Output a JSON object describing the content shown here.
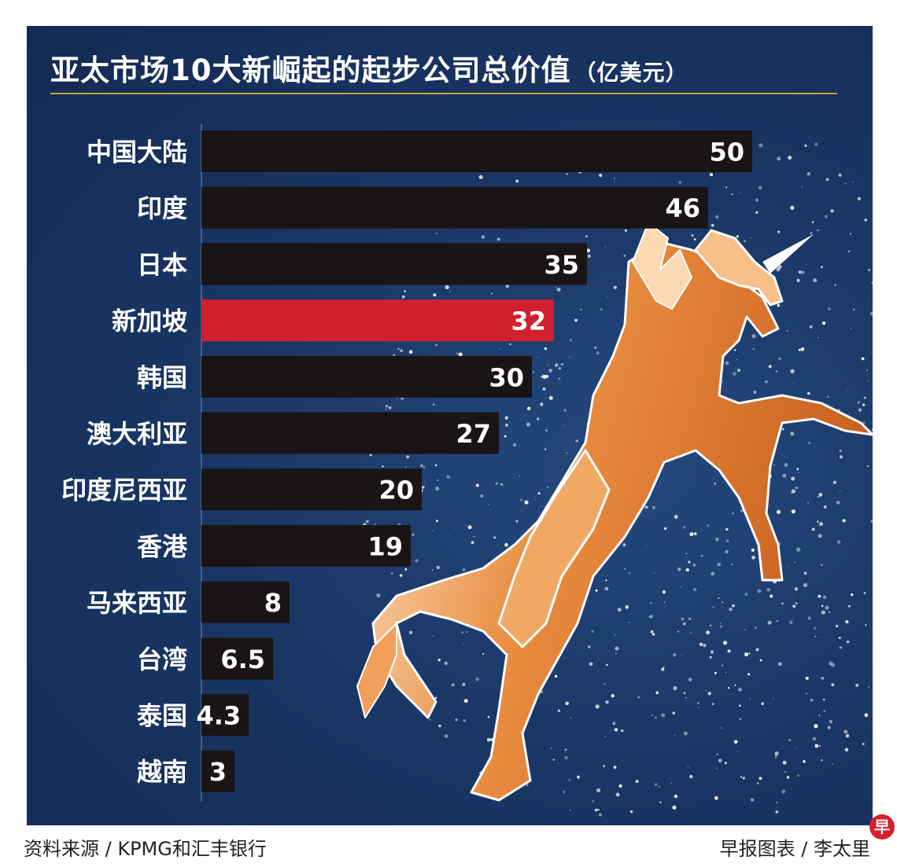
{
  "title": "亚太市场10大新崛起的起步公司总价值",
  "unit": "（亿美元）",
  "source": "资料来源 / KPMG和汇丰银行",
  "credit": "早报图表 / 李太里",
  "logo_text": "早",
  "colors": {
    "background": "#1b3868",
    "bar": "#1a1414",
    "highlight": "#d0202d",
    "rule": "#c9a13c",
    "unicorn": "#e68a3e"
  },
  "decor_icon": "unicorn-illustration",
  "chart_data": {
    "type": "bar",
    "orientation": "horizontal",
    "categories": [
      "中国大陆",
      "印度",
      "日本",
      "新加坡",
      "韩国",
      "澳大利亚",
      "印度尼西亚",
      "香港",
      "马来西亚",
      "台湾",
      "泰国",
      "越南"
    ],
    "values": [
      50,
      46,
      35,
      32,
      30,
      27,
      20,
      19,
      8,
      6.5,
      4.3,
      3
    ],
    "value_labels": [
      "50",
      "46",
      "35",
      "32",
      "30",
      "27",
      "20",
      "19",
      "8",
      "6.5",
      "4.3",
      "3"
    ],
    "highlight": "新加坡",
    "xlim": [
      0,
      50
    ],
    "grid": false,
    "legend": "none"
  }
}
